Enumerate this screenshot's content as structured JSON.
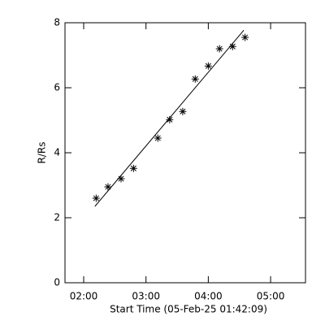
{
  "chart_data": {
    "type": "scatter",
    "x_label": "Start Time (05-Feb-25 01:42:09)",
    "y_label": "R/Rs",
    "xlim": [
      1.7,
      5.56
    ],
    "ylim": [
      0,
      8
    ],
    "xticks": [
      {
        "value": 2,
        "label": "02:00"
      },
      {
        "value": 3,
        "label": "03:00"
      },
      {
        "value": 4,
        "label": "04:00"
      },
      {
        "value": 5,
        "label": "05:00"
      }
    ],
    "yticks": [
      0,
      2,
      4,
      6,
      8
    ],
    "series": [
      {
        "kind": "points",
        "color": "#000000",
        "x": [
          2.2,
          2.39,
          2.6,
          2.8,
          3.19,
          3.38,
          3.59,
          3.79,
          4.0,
          4.18,
          4.39,
          4.59
        ],
        "values": [
          2.6,
          2.95,
          3.2,
          3.52,
          4.45,
          5.02,
          5.27,
          6.27,
          6.67,
          7.2,
          7.27,
          7.55
        ]
      },
      {
        "kind": "line",
        "color": "#000000",
        "x": [
          2.18,
          4.57
        ],
        "values": [
          2.35,
          7.77
        ]
      }
    ]
  }
}
